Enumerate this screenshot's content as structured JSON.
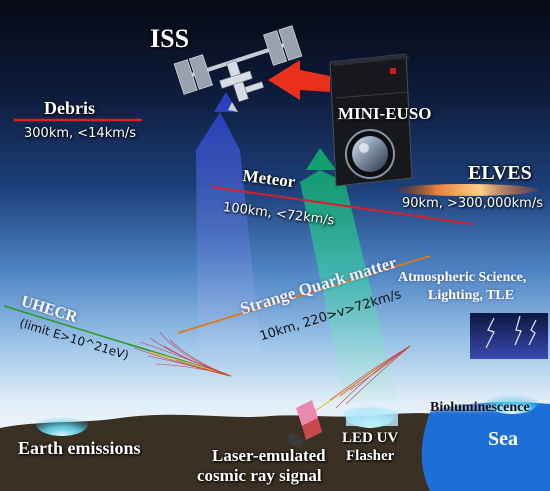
{
  "labels": {
    "iss": "ISS",
    "mini_euso": "MINI-EUSO",
    "debris": "Debris",
    "debris_info": "300km, <14km/s",
    "meteor": "Meteor",
    "meteor_info": "100km, <72km/s",
    "elves": "ELVES",
    "elves_info": "90km, >300,000km/s",
    "strange_quark": "Strange Quark matter",
    "strange_quark_info": "10km, 220>v>72km/s",
    "uhecr": "UHECR",
    "uhecr_limit": "(limit E>10^21eV)",
    "atmospheric_line1": "Atmospheric Science,",
    "atmospheric_line2": "Lighting, TLE",
    "bioluminescence": "Bioluminescence",
    "sea": "Sea",
    "earth_emissions": "Earth emissions",
    "laser_line1": "Laser-emulated",
    "laser_line2": "cosmic ray signal",
    "led_line1": "LED UV",
    "led_line2": "Flasher"
  },
  "colors": {
    "debris_line": "#e0201c",
    "meteor_line": "#d8202a",
    "quark_line": "#e07a1a",
    "uhecr_track": "#2a9a2a",
    "arrow_red": "#e8301c",
    "beam_blue": "#3a5ad0",
    "beam_teal": "#2ec89a",
    "elves_glow": "#e8823a",
    "sea": "#1e6ed8",
    "ground": "#3a3124"
  }
}
